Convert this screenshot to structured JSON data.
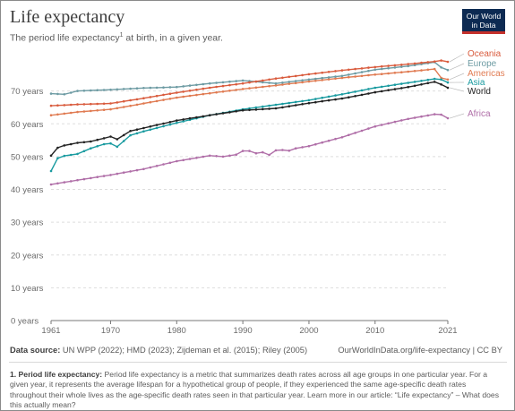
{
  "title": "Life expectancy",
  "subtitle_main": "The period life expectancy",
  "subtitle_sup": "1",
  "subtitle_rest": " at birth, in a given year.",
  "logo": {
    "line1": "Our World",
    "line2": "in Data"
  },
  "source_label": "Data source:",
  "source_text": " UN WPP (2022); HMD (2023); Zijdeman et al. (2015); Riley (2005)",
  "url_text": "OurWorldInData.org/life-expectancy | CC BY",
  "note_label": "1. Period life expectancy:",
  "note_text": " Period life expectancy is a metric that summarizes death rates across all age groups in one particular year. For a given year, it represents the average lifespan for a hypothetical group of people, if they experienced the same age-specific death rates throughout their whole lives as the age-specific death rates seen in that particular year. Learn more in our article: “Life expectancy” – What does this actually mean?",
  "colors": {
    "Oceania": "#d95c3e",
    "Europe": "#6d9ba3",
    "Americas": "#e07b52",
    "Asia": "#1a9ba0",
    "World": "#222222",
    "Africa": "#b06fa8",
    "grid": "#dddddd",
    "axis": "#777777"
  },
  "chart_data": {
    "type": "line",
    "title": "Life expectancy",
    "xlabel": "",
    "ylabel": "",
    "xlim": [
      1961,
      2021
    ],
    "ylim": [
      0,
      80
    ],
    "y_ticks": [
      0,
      10,
      20,
      30,
      40,
      50,
      60,
      70
    ],
    "y_tick_labels": [
      "0 years",
      "10 years",
      "20 years",
      "30 years",
      "40 years",
      "50 years",
      "60 years",
      "70 years"
    ],
    "x_ticks": [
      1961,
      1970,
      1980,
      1990,
      2000,
      2010,
      2021
    ],
    "x_tick_labels": [
      "1961",
      "1970",
      "1980",
      "1990",
      "2000",
      "2010",
      "2021"
    ],
    "grid": "horizontal",
    "legend": "right, labels at line ends",
    "series": [
      {
        "name": "Oceania",
        "x": [
          1961,
          1965,
          1970,
          1975,
          1980,
          1985,
          1990,
          1995,
          2000,
          2005,
          2010,
          2015,
          2019,
          2020,
          2021
        ],
        "values": [
          65.5,
          65.9,
          66.2,
          67.8,
          69.5,
          71.0,
          72.3,
          73.8,
          75.1,
          76.3,
          77.3,
          78.2,
          79.0,
          79.3,
          78.9
        ]
      },
      {
        "name": "Europe",
        "x": [
          1961,
          1963,
          1965,
          1970,
          1975,
          1980,
          1985,
          1990,
          1995,
          2000,
          2005,
          2010,
          2015,
          2019,
          2020,
          2021
        ],
        "values": [
          69.2,
          69.0,
          70.0,
          70.4,
          70.9,
          71.2,
          72.3,
          73.2,
          72.3,
          73.5,
          74.6,
          76.5,
          77.6,
          78.8,
          77.2,
          76.4
        ]
      },
      {
        "name": "Americas",
        "x": [
          1961,
          1965,
          1970,
          1975,
          1980,
          1985,
          1990,
          1995,
          2000,
          2005,
          2010,
          2015,
          2019,
          2020,
          2021
        ],
        "values": [
          62.6,
          63.6,
          64.4,
          66.2,
          68.0,
          69.3,
          70.6,
          71.7,
          72.9,
          74.0,
          75.0,
          75.9,
          76.7,
          74.0,
          73.5
        ]
      },
      {
        "name": "Asia",
        "x": [
          1961,
          1962,
          1963,
          1965,
          1967,
          1969,
          1970,
          1971,
          1973,
          1975,
          1980,
          1985,
          1990,
          1995,
          2000,
          2005,
          2010,
          2015,
          2019,
          2020,
          2021
        ],
        "values": [
          45.6,
          49.5,
          50.2,
          50.8,
          52.5,
          53.8,
          54.0,
          53.0,
          56.5,
          57.7,
          60.3,
          62.6,
          64.4,
          65.8,
          67.2,
          69.0,
          71.0,
          72.5,
          73.7,
          73.5,
          72.6
        ]
      },
      {
        "name": "World",
        "x": [
          1961,
          1962,
          1963,
          1965,
          1967,
          1969,
          1970,
          1971,
          1973,
          1975,
          1980,
          1985,
          1990,
          1995,
          2000,
          2005,
          2010,
          2015,
          2019,
          2020,
          2021
        ],
        "values": [
          50.3,
          52.7,
          53.4,
          54.2,
          54.6,
          55.6,
          56.1,
          55.3,
          57.8,
          58.7,
          61.0,
          62.6,
          64.1,
          64.7,
          66.3,
          67.7,
          69.6,
          71.2,
          72.8,
          72.0,
          71.0
        ]
      },
      {
        "name": "Africa",
        "x": [
          1961,
          1965,
          1970,
          1975,
          1980,
          1985,
          1987,
          1989,
          1990,
          1991,
          1992,
          1993,
          1994,
          1995,
          1996,
          1997,
          1998,
          2000,
          2005,
          2010,
          2015,
          2019,
          2020,
          2021
        ],
        "values": [
          41.5,
          42.8,
          44.4,
          46.2,
          48.6,
          50.3,
          50.0,
          50.6,
          51.7,
          51.7,
          51.0,
          51.3,
          50.5,
          51.9,
          52.0,
          51.8,
          52.5,
          53.2,
          55.9,
          59.2,
          61.5,
          62.9,
          62.8,
          61.7
        ]
      }
    ]
  }
}
